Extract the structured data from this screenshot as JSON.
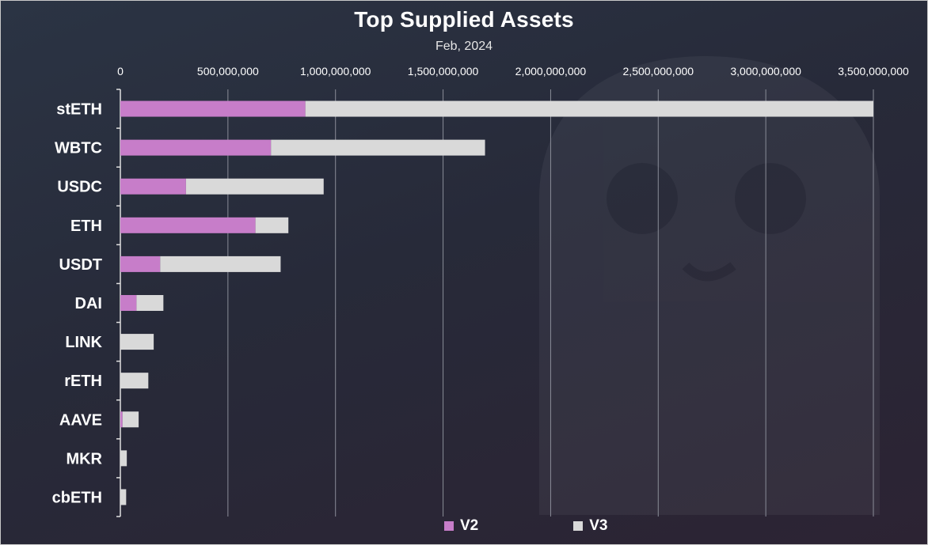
{
  "chart_data": {
    "type": "bar",
    "orientation": "horizontal",
    "stacked": true,
    "title": "Top Supplied Assets",
    "subtitle": "Feb, 2024",
    "categories": [
      "stETH",
      "WBTC",
      "USDC",
      "ETH",
      "USDT",
      "DAI",
      "LINK",
      "rETH",
      "AAVE",
      "MKR",
      "cbETH"
    ],
    "series": [
      {
        "name": "V2",
        "color": "#c77dc9",
        "values": [
          860000000,
          700000000,
          305000000,
          628000000,
          185000000,
          75000000,
          0,
          0,
          10000000,
          0,
          0
        ]
      },
      {
        "name": "V3",
        "color": "#d9d9d9",
        "values": [
          2640000000,
          995000000,
          640000000,
          153000000,
          560000000,
          125000000,
          155000000,
          130000000,
          75000000,
          30000000,
          27000000
        ]
      }
    ],
    "xlim": [
      0,
      3500000000
    ],
    "xticks": [
      "0",
      "500,000,000",
      "1,000,000,000",
      "1,500,000,000",
      "2,000,000,000",
      "2,500,000,000",
      "3,000,000,000",
      "3,500,000,000"
    ],
    "tick_step": 500000000,
    "grid": true,
    "legend_position": "bottom"
  }
}
